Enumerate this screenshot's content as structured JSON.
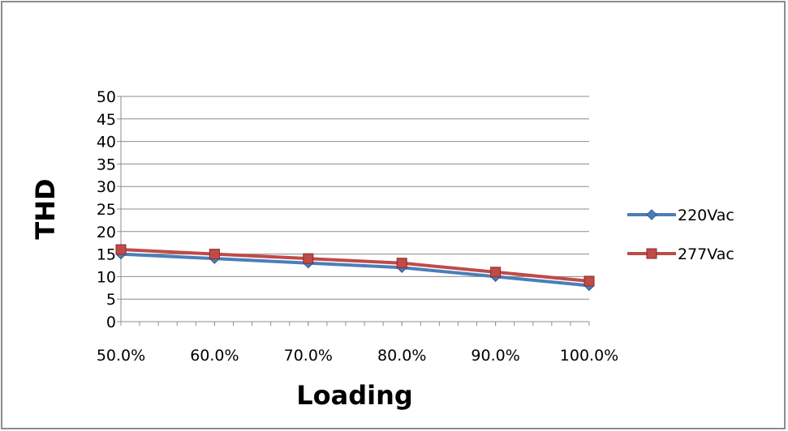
{
  "chart_data": {
    "type": "line",
    "title": "",
    "xlabel": "Loading",
    "ylabel": "THD",
    "categories": [
      "50.0%",
      "60.0%",
      "70.0%",
      "80.0%",
      "90.0%",
      "100.0%"
    ],
    "ylim": [
      0,
      50
    ],
    "yticks": [
      0,
      5,
      10,
      15,
      20,
      25,
      30,
      35,
      40,
      45,
      50
    ],
    "grid": true,
    "legend_position": "right",
    "series": [
      {
        "name": "220Vac",
        "values": [
          15,
          14,
          13,
          12,
          10,
          8
        ],
        "color": "#4A7EBB",
        "marker": "diamond"
      },
      {
        "name": "277Vac",
        "values": [
          16,
          15,
          14,
          13,
          11,
          9
        ],
        "color": "#BE4B48",
        "marker": "square"
      }
    ]
  }
}
